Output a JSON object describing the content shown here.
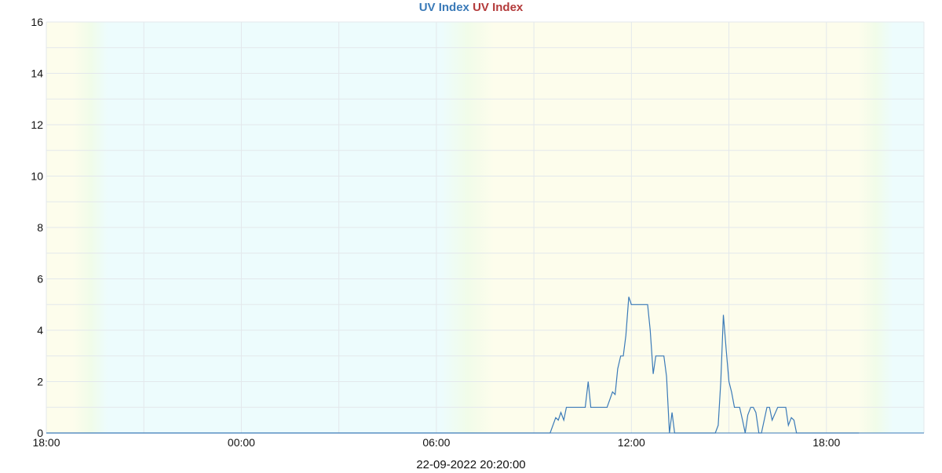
{
  "chart_data": {
    "type": "line",
    "title_parts": [
      "UV Index",
      "UV Index"
    ],
    "title_colors": [
      "#3a7ab8",
      "#b33a3a"
    ],
    "timestamp": "22-09-2022 20:20:00",
    "x_unit": "hours since 18:00",
    "xlim": [
      0,
      27
    ],
    "x_ticks": [
      {
        "x": 0,
        "label": "18:00"
      },
      {
        "x": 6,
        "label": "00:00"
      },
      {
        "x": 12,
        "label": "06:00"
      },
      {
        "x": 18,
        "label": "12:00"
      },
      {
        "x": 24,
        "label": "18:00"
      }
    ],
    "ylim": [
      0,
      16
    ],
    "y_ticks": [
      0,
      2,
      4,
      6,
      8,
      10,
      12,
      14,
      16
    ],
    "grid": true,
    "line_color": "#3a7ab8",
    "series": [
      {
        "points": [
          [
            0,
            0
          ],
          [
            15.5,
            0
          ],
          [
            15.67,
            0.6
          ],
          [
            15.75,
            0.5
          ],
          [
            15.83,
            0.8
          ],
          [
            15.92,
            0.5
          ],
          [
            16.0,
            1.0
          ],
          [
            16.58,
            1.0
          ],
          [
            16.67,
            2.0
          ],
          [
            16.75,
            1.0
          ],
          [
            17.25,
            1.0
          ],
          [
            17.42,
            1.6
          ],
          [
            17.5,
            1.5
          ],
          [
            17.58,
            2.5
          ],
          [
            17.67,
            3.0
          ],
          [
            17.75,
            3.0
          ],
          [
            17.83,
            3.8
          ],
          [
            17.92,
            5.3
          ],
          [
            18.0,
            5.0
          ],
          [
            18.5,
            5.0
          ],
          [
            18.58,
            4.0
          ],
          [
            18.67,
            2.3
          ],
          [
            18.75,
            3.0
          ],
          [
            19.0,
            3.0
          ],
          [
            19.08,
            2.2
          ],
          [
            19.17,
            0
          ],
          [
            19.25,
            0.8
          ],
          [
            19.33,
            0
          ],
          [
            20.58,
            0
          ],
          [
            20.67,
            0.3
          ],
          [
            20.75,
            2.0
          ],
          [
            20.83,
            4.6
          ],
          [
            20.92,
            3.2
          ],
          [
            21.0,
            2.0
          ],
          [
            21.08,
            1.6
          ],
          [
            21.17,
            1.0
          ],
          [
            21.33,
            1.0
          ],
          [
            21.42,
            0.5
          ],
          [
            21.5,
            0
          ],
          [
            21.58,
            0.7
          ],
          [
            21.67,
            1.0
          ],
          [
            21.75,
            1.0
          ],
          [
            21.83,
            0.8
          ],
          [
            21.92,
            0
          ],
          [
            22.0,
            0
          ],
          [
            22.17,
            1.0
          ],
          [
            22.25,
            1.0
          ],
          [
            22.33,
            0.5
          ],
          [
            22.5,
            1.0
          ],
          [
            22.75,
            1.0
          ],
          [
            22.83,
            0.3
          ],
          [
            22.92,
            0.6
          ],
          [
            23.0,
            0.5
          ],
          [
            23.08,
            0
          ],
          [
            25.0,
            0
          ]
        ]
      }
    ]
  }
}
